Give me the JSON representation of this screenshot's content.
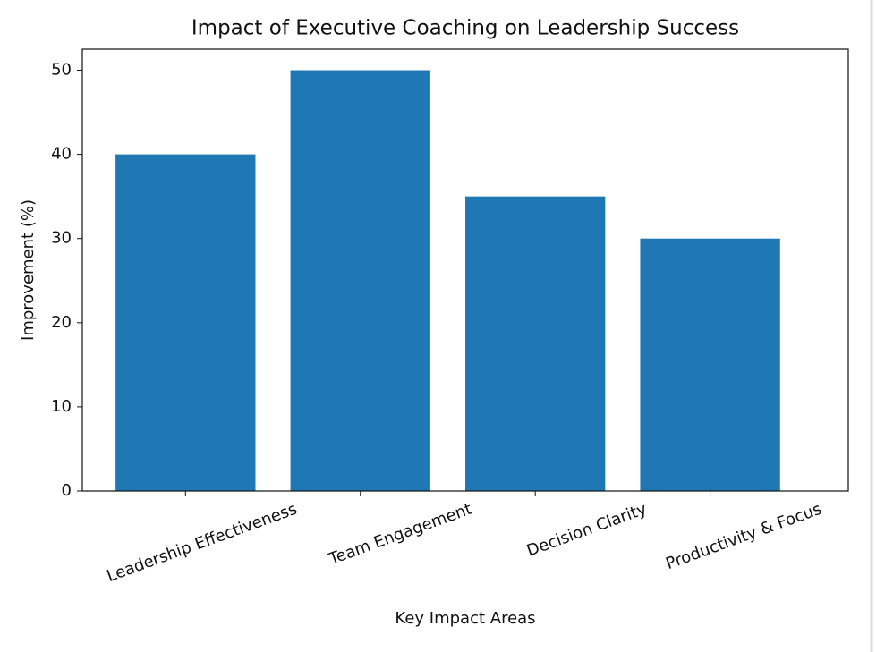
{
  "chart_data": {
    "type": "bar",
    "title": "Impact of Executive Coaching on Leadership Success",
    "x_label": "Key Impact Areas",
    "y_label": "Improvement (%)",
    "categories": [
      "Leadership Effectiveness",
      "Team Engagement",
      "Decision Clarity",
      "Productivity & Focus"
    ],
    "values": [
      40,
      50,
      35,
      30
    ],
    "color": "#1f77b4",
    "ylim": [
      0,
      52.5
    ],
    "yticks": [
      0,
      10,
      20,
      30,
      40,
      50
    ],
    "grid": false
  }
}
